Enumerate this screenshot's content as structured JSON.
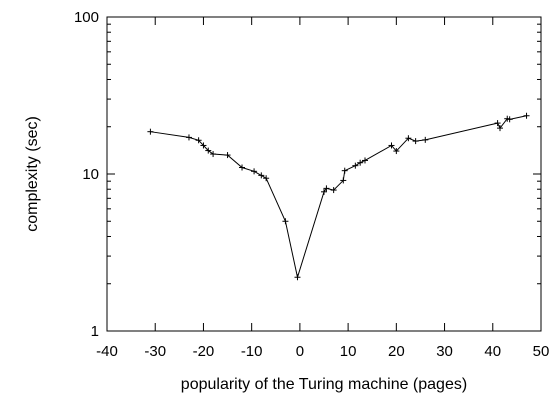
{
  "chart_data": {
    "type": "line",
    "title": "",
    "xlabel": "popularity of the Turing machine  (pages)",
    "ylabel": "complexity (sec)",
    "xlim": [
      -40,
      50
    ],
    "ylim": [
      1,
      100
    ],
    "yscale": "log",
    "grid": false,
    "legend": "none",
    "xticks": [
      -40,
      -30,
      -20,
      -10,
      0,
      10,
      20,
      30,
      40,
      50
    ],
    "xtick_labels": [
      "-40",
      "-30",
      "-20",
      "-10",
      "0",
      "10",
      "20",
      "30",
      "40",
      "50"
    ],
    "yticks": [
      1,
      10,
      100
    ],
    "ytick_labels": [
      "1",
      "10",
      "100"
    ],
    "series": [
      {
        "color": "#000000",
        "marker": "plus",
        "points": [
          [
            -31,
            18.6
          ],
          [
            -23,
            17.1
          ],
          [
            -21,
            16.4
          ],
          [
            -20,
            15.2
          ],
          [
            -19,
            14.1
          ],
          [
            -18,
            13.4
          ],
          [
            -15,
            13.2
          ],
          [
            -12,
            11.0
          ],
          [
            -9.5,
            10.4
          ],
          [
            -8,
            9.8
          ],
          [
            -7,
            9.4
          ],
          [
            -3,
            5.0
          ],
          [
            -0.5,
            2.2
          ],
          [
            5,
            7.7
          ],
          [
            5.5,
            8.1
          ],
          [
            7,
            7.9
          ],
          [
            9,
            9.1
          ],
          [
            9.3,
            10.5
          ],
          [
            11.5,
            11.3
          ],
          [
            12.5,
            11.8
          ],
          [
            13.5,
            12.2
          ],
          [
            19,
            15.2
          ],
          [
            20,
            14.0
          ],
          [
            22.5,
            16.9
          ],
          [
            24,
            16.2
          ],
          [
            26,
            16.5
          ],
          [
            41,
            21.1
          ],
          [
            41.5,
            19.6
          ],
          [
            43,
            22.5
          ],
          [
            43.5,
            22.3
          ],
          [
            47,
            23.5
          ]
        ]
      }
    ]
  }
}
